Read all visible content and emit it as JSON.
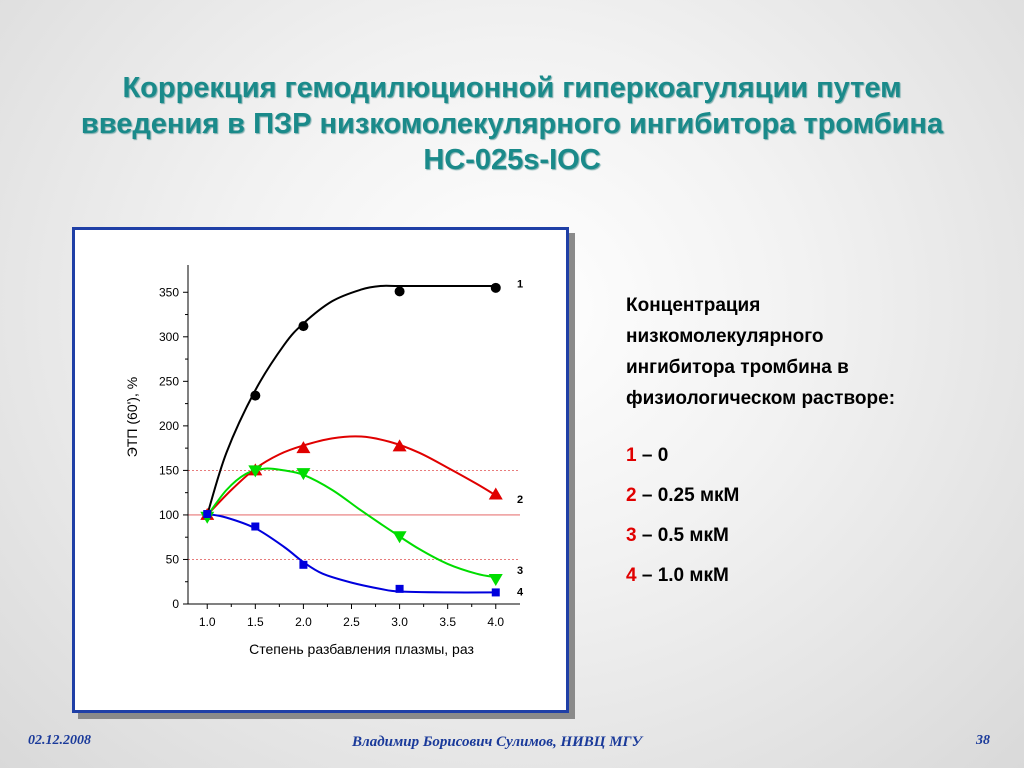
{
  "slide": {
    "title_line1": "Коррекция гемодилюционной гиперкоагуляции путем",
    "title_line2": "введения в ПЗР низкомолекулярного ингибитора тромбина",
    "title_line3": "НС-025s-IOC",
    "date": "02.12.2008",
    "author": "Владимир Борисович Сулимов, НИВЦ МГУ",
    "page": "38"
  },
  "legend": {
    "heading_lines": [
      "Концентрация",
      "низкомолекулярного",
      "ингибитора тромбина в",
      "физиологическом растворе:"
    ],
    "items": [
      {
        "num": "1",
        "text": " – 0"
      },
      {
        "num": "2",
        "text": " – 0.25 мкМ"
      },
      {
        "num": "3",
        "text": " – 0.5 мкМ"
      },
      {
        "num": "4",
        "text": " – 1.0 мкМ"
      }
    ]
  },
  "chart_data": {
    "type": "line",
    "xlabel": "Степень разбавления плазмы,  раз",
    "ylabel": "ЭТП (60'),  %",
    "xlim": [
      0.8,
      4.2
    ],
    "ylim": [
      0,
      375
    ],
    "xticks": [
      "1.0",
      "1.5",
      "2.0",
      "2.5",
      "3.0",
      "3.5",
      "4.0"
    ],
    "yticks": [
      "0",
      "50",
      "100",
      "150",
      "200",
      "250",
      "300",
      "350"
    ],
    "reference_lines": [
      50,
      100,
      150
    ],
    "series": [
      {
        "name": "1",
        "color": "#000000",
        "marker": "circle",
        "x": [
          1.0,
          1.5,
          2.0,
          3.0,
          4.0
        ],
        "y": [
          100,
          234,
          312,
          351,
          355
        ],
        "curve": [
          [
            1.0,
            100
          ],
          [
            1.2,
            170
          ],
          [
            1.5,
            240
          ],
          [
            1.8,
            291
          ],
          [
            2.0,
            315
          ],
          [
            2.3,
            340
          ],
          [
            2.6,
            353
          ],
          [
            2.8,
            357
          ],
          [
            3.0,
            357
          ],
          [
            3.5,
            357
          ],
          [
            4.0,
            357
          ]
        ]
      },
      {
        "name": "2",
        "color": "#e00000",
        "marker": "triangle-up",
        "x": [
          1.0,
          1.5,
          2.0,
          3.0,
          4.0
        ],
        "y": [
          100,
          150,
          175,
          177,
          123
        ],
        "curve": [
          [
            1.0,
            100
          ],
          [
            1.25,
            128
          ],
          [
            1.5,
            152
          ],
          [
            1.75,
            168
          ],
          [
            2.0,
            178
          ],
          [
            2.3,
            186
          ],
          [
            2.6,
            188
          ],
          [
            2.9,
            182
          ],
          [
            3.2,
            170
          ],
          [
            3.5,
            153
          ],
          [
            3.8,
            135
          ],
          [
            4.0,
            122
          ]
        ]
      },
      {
        "name": "3",
        "color": "#00dd00",
        "marker": "triangle-down",
        "x": [
          1.0,
          1.5,
          2.0,
          3.0,
          4.0
        ],
        "y": [
          98,
          150,
          147,
          76,
          28
        ],
        "curve": [
          [
            1.0,
            99
          ],
          [
            1.2,
            128
          ],
          [
            1.4,
            146
          ],
          [
            1.6,
            152
          ],
          [
            1.8,
            150
          ],
          [
            2.0,
            145
          ],
          [
            2.3,
            128
          ],
          [
            2.6,
            105
          ],
          [
            2.9,
            83
          ],
          [
            3.2,
            62
          ],
          [
            3.5,
            45
          ],
          [
            3.8,
            34
          ],
          [
            4.0,
            30
          ]
        ]
      },
      {
        "name": "4",
        "color": "#0000dd",
        "marker": "square",
        "x": [
          1.0,
          1.5,
          2.0,
          3.0,
          4.0
        ],
        "y": [
          101,
          87,
          44,
          17,
          13
        ],
        "curve": [
          [
            1.0,
            101
          ],
          [
            1.2,
            97
          ],
          [
            1.5,
            85
          ],
          [
            1.8,
            64
          ],
          [
            2.0,
            47
          ],
          [
            2.2,
            34
          ],
          [
            2.5,
            24
          ],
          [
            2.8,
            17
          ],
          [
            3.0,
            14
          ],
          [
            3.5,
            13
          ],
          [
            4.0,
            13
          ]
        ]
      }
    ]
  }
}
